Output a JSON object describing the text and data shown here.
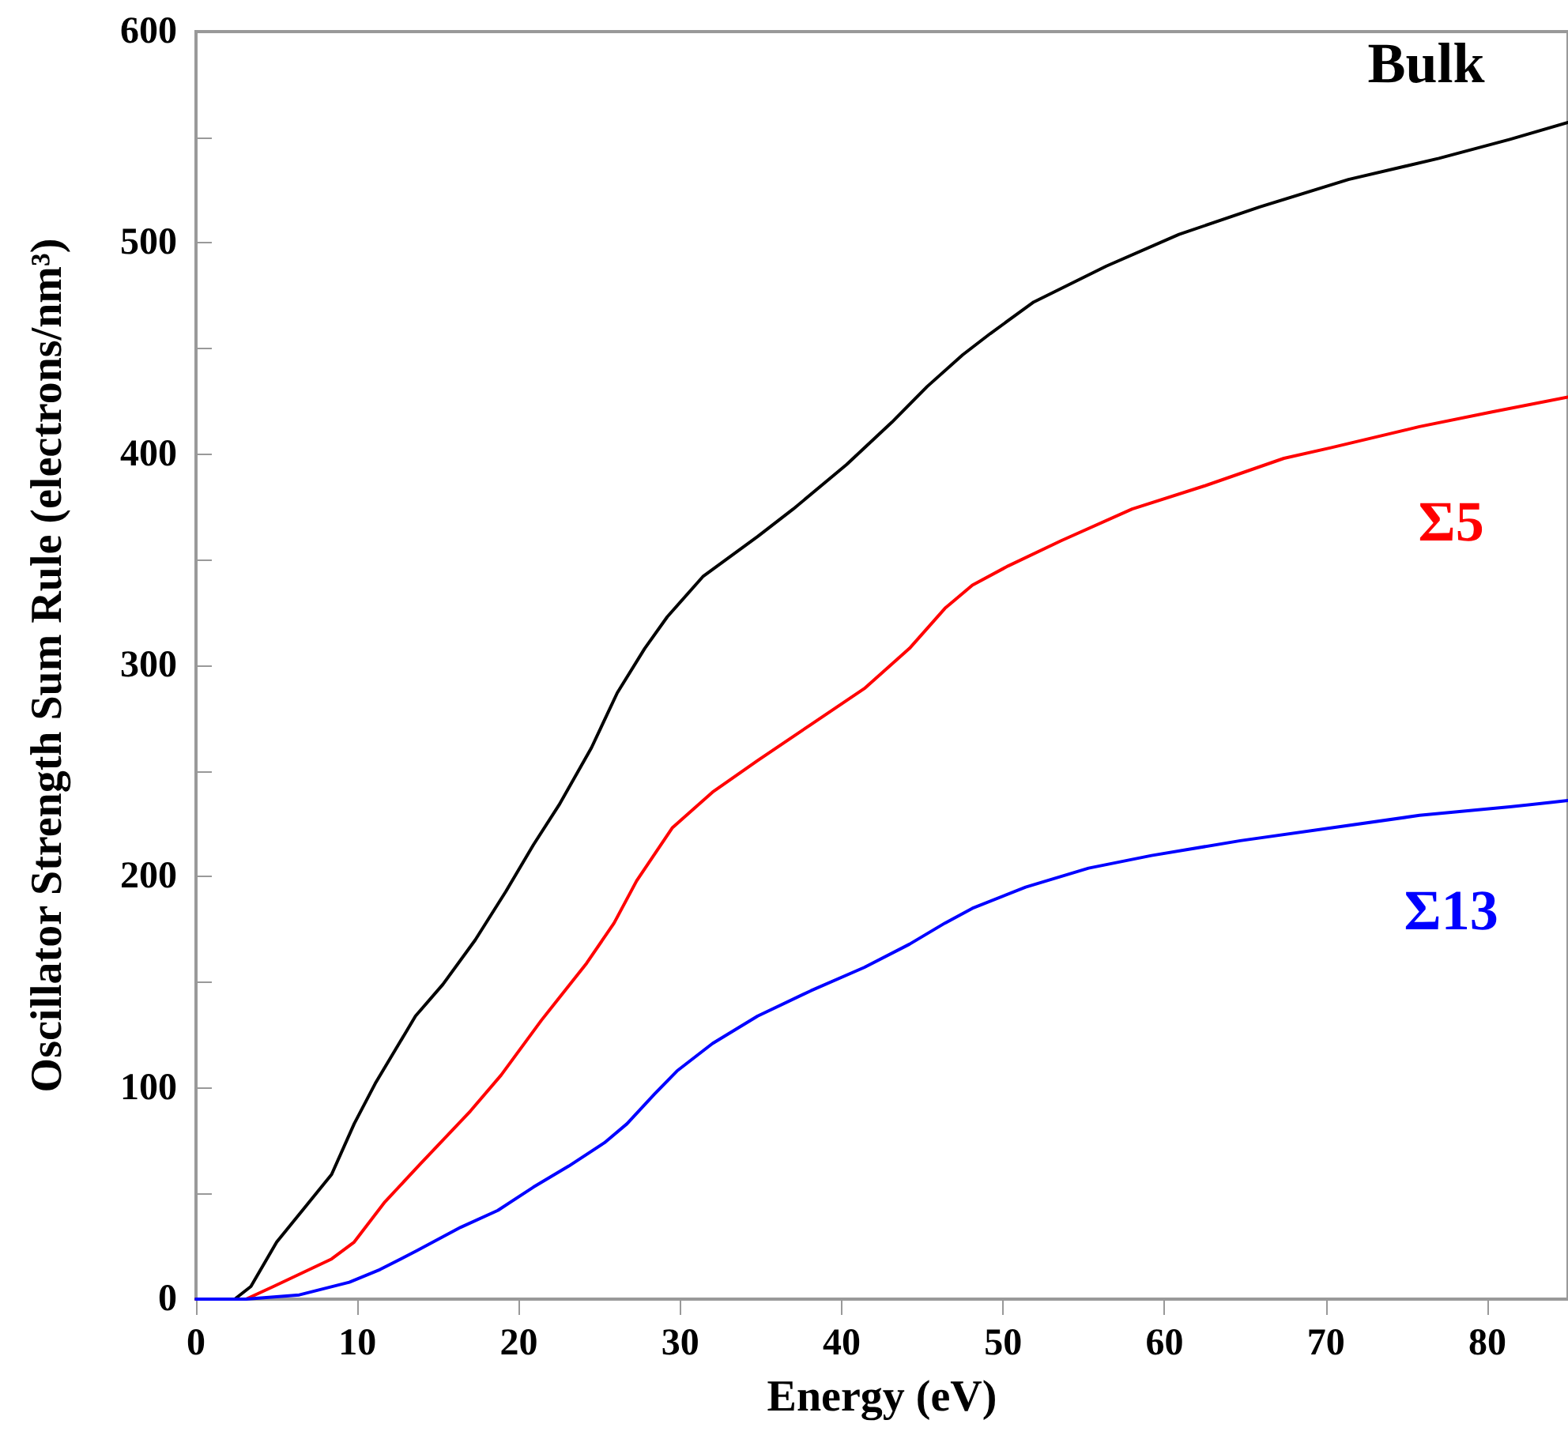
{
  "chart_data": {
    "type": "line",
    "xlabel": "Energy (eV)",
    "ylabel": "Oscillator Strength Sum Rule (electrons/nm³)",
    "xlim": [
      0,
      85
    ],
    "xticks": [
      0,
      10,
      20,
      30,
      40,
      50,
      60,
      70,
      80
    ],
    "ylim": [
      0,
      600
    ],
    "yticks": [
      0,
      100,
      200,
      300,
      400,
      500,
      600
    ],
    "grid": false,
    "legend": false,
    "marker": "none",
    "line_style": "solid",
    "series": [
      {
        "name": "Bulk",
        "color": "#000000",
        "x": [
          0,
          2.4,
          3.4,
          5,
          8.4,
          9.8,
          11.1,
          13.6,
          15.3,
          17.3,
          19.2,
          20.9,
          22.5,
          24.5,
          26.1,
          27.8,
          29.2,
          31.4,
          34.8,
          37,
          40.3,
          43.1,
          45.3,
          47.5,
          49.2,
          51.9,
          56.4,
          60.9,
          65.9,
          71.4,
          77,
          81.4,
          85
        ],
        "values": [
          0,
          0,
          6,
          27,
          59,
          83,
          102,
          134,
          149,
          170,
          193,
          215,
          234,
          261,
          287,
          308,
          323,
          342,
          361,
          374,
          395,
          415,
          432,
          447,
          457,
          472,
          489,
          504,
          517,
          530,
          540,
          549,
          557
        ]
      },
      {
        "name": "Σ5",
        "color": "#ff0000",
        "x": [
          0,
          3.1,
          4.8,
          8.4,
          9.8,
          11.7,
          13.9,
          17,
          18.9,
          21.4,
          24.2,
          25.9,
          27.3,
          29.5,
          32,
          34.8,
          38.1,
          41.4,
          44.2,
          46.4,
          48.1,
          50.3,
          53.6,
          58,
          62.5,
          67.4,
          70.3,
          75.8,
          80.3,
          85
        ],
        "values": [
          0,
          0,
          6,
          19,
          27,
          46,
          64,
          89,
          106,
          132,
          159,
          178,
          198,
          223,
          240,
          255,
          272,
          289,
          308,
          327,
          338,
          347,
          359,
          374,
          385,
          398,
          403,
          413,
          420,
          427
        ]
      },
      {
        "name": "Σ13",
        "color": "#0000ff",
        "x": [
          0,
          3.1,
          6.4,
          9.5,
          11.4,
          13.7,
          16.4,
          18.7,
          20.9,
          23.1,
          25.3,
          26.7,
          28.4,
          29.8,
          32,
          34.8,
          38.1,
          41.4,
          44.2,
          46.4,
          48.1,
          51.4,
          55.3,
          59.2,
          64.7,
          70.3,
          75.8,
          81.4,
          85
        ],
        "values": [
          0,
          0,
          2,
          8,
          14,
          23,
          34,
          42,
          53,
          63,
          74,
          83,
          97,
          108,
          121,
          134,
          146,
          157,
          168,
          178,
          185,
          195,
          204,
          210,
          217,
          223,
          229,
          233,
          236
        ]
      }
    ]
  }
}
